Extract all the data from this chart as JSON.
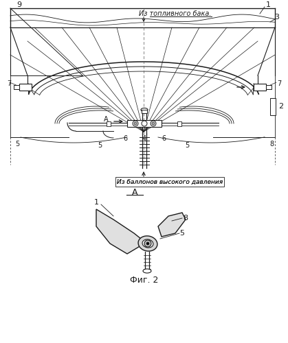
{
  "figure_size": [
    4.19,
    5.0
  ],
  "dpi": 100,
  "bg_color": "#ffffff",
  "line_color": "#1a1a1a",
  "top_label": "Из топливного бака.",
  "bottom_label": "Из баллонов высокого давления",
  "fig2_label": "Фиг. 2",
  "view_label": "А"
}
